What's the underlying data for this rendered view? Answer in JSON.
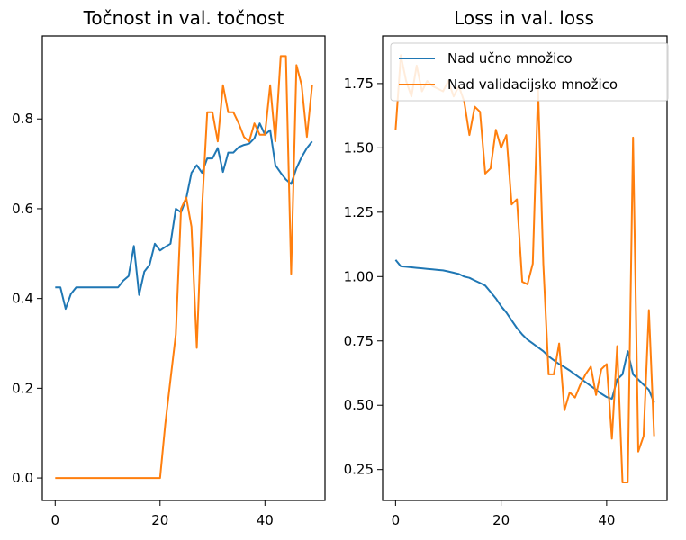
{
  "chart_data": [
    {
      "type": "line",
      "title": "Točnost in val. točnost",
      "xlabel": "",
      "ylabel": "",
      "xlim": [
        -2.45,
        51.45
      ],
      "ylim": [
        -0.05,
        0.985
      ],
      "xticks": [
        0,
        20,
        40
      ],
      "yticks": [
        0.0,
        0.2,
        0.4,
        0.6,
        0.8
      ],
      "ytick_labels": [
        "0.0",
        "0.2",
        "0.4",
        "0.6",
        "0.8"
      ],
      "grid": false,
      "x": [
        0,
        1,
        2,
        3,
        4,
        5,
        6,
        7,
        8,
        9,
        10,
        11,
        12,
        13,
        14,
        15,
        16,
        17,
        18,
        19,
        20,
        21,
        22,
        23,
        24,
        25,
        26,
        27,
        28,
        29,
        30,
        31,
        32,
        33,
        34,
        35,
        36,
        37,
        38,
        39,
        40,
        41,
        42,
        43,
        44,
        45,
        46,
        47,
        48,
        49
      ],
      "series": [
        {
          "color": "#1f77b4",
          "values": [
            0.425,
            0.425,
            0.377,
            0.41,
            0.425,
            0.425,
            0.425,
            0.425,
            0.425,
            0.425,
            0.425,
            0.425,
            0.425,
            0.44,
            0.45,
            0.517,
            0.408,
            0.46,
            0.475,
            0.522,
            0.507,
            0.515,
            0.522,
            0.6,
            0.592,
            0.623,
            0.68,
            0.697,
            0.68,
            0.712,
            0.712,
            0.735,
            0.682,
            0.725,
            0.725,
            0.737,
            0.742,
            0.745,
            0.757,
            0.79,
            0.765,
            0.775,
            0.697,
            0.68,
            0.665,
            0.655,
            0.69,
            0.715,
            0.735,
            0.75
          ]
        },
        {
          "color": "#ff7f0e",
          "values": [
            0,
            0,
            0,
            0,
            0,
            0,
            0,
            0,
            0,
            0,
            0,
            0,
            0,
            0,
            0,
            0,
            0,
            0,
            0,
            0,
            0,
            0.12,
            0.22,
            0.32,
            0.6,
            0.625,
            0.56,
            0.29,
            0.6,
            0.815,
            0.815,
            0.75,
            0.875,
            0.815,
            0.815,
            0.79,
            0.76,
            0.75,
            0.79,
            0.765,
            0.765,
            0.875,
            0.75,
            0.94,
            0.94,
            0.455,
            0.92,
            0.875,
            0.76,
            0.875
          ]
        }
      ]
    },
    {
      "type": "line",
      "title": "Loss in val. loss",
      "xlabel": "",
      "ylabel": "",
      "xlim": [
        -2.45,
        51.45
      ],
      "ylim": [
        0.13,
        1.935
      ],
      "xticks": [
        0,
        20,
        40
      ],
      "yticks": [
        0.25,
        0.5,
        0.75,
        1.0,
        1.25,
        1.5,
        1.75
      ],
      "ytick_labels": [
        "0.25",
        "0.50",
        "0.75",
        "1.00",
        "1.25",
        "1.50",
        "1.75"
      ],
      "grid": false,
      "legend_position": "top-right",
      "x": [
        0,
        1,
        2,
        3,
        4,
        5,
        6,
        7,
        8,
        9,
        10,
        11,
        12,
        13,
        14,
        15,
        16,
        17,
        18,
        19,
        20,
        21,
        22,
        23,
        24,
        25,
        26,
        27,
        28,
        29,
        30,
        31,
        32,
        33,
        34,
        35,
        36,
        37,
        38,
        39,
        40,
        41,
        42,
        43,
        44,
        45,
        46,
        47,
        48,
        49
      ],
      "series": [
        {
          "name": "Nad učno množico",
          "color": "#1f77b4",
          "values": [
            1.065,
            1.04,
            1.038,
            1.036,
            1.034,
            1.032,
            1.03,
            1.028,
            1.026,
            1.024,
            1.02,
            1.015,
            1.01,
            1.0,
            0.995,
            0.985,
            0.975,
            0.965,
            0.94,
            0.915,
            0.885,
            0.86,
            0.83,
            0.8,
            0.775,
            0.755,
            0.74,
            0.725,
            0.71,
            0.69,
            0.675,
            0.66,
            0.648,
            0.635,
            0.62,
            0.605,
            0.59,
            0.575,
            0.56,
            0.545,
            0.532,
            0.525,
            0.6,
            0.62,
            0.71,
            0.62,
            0.6,
            0.58,
            0.56,
            0.51
          ]
        },
        {
          "name": "Nad validacijsko množico",
          "color": "#ff7f0e",
          "values": [
            1.57,
            1.86,
            1.76,
            1.7,
            1.82,
            1.72,
            1.76,
            1.74,
            1.73,
            1.72,
            1.76,
            1.7,
            1.74,
            1.68,
            1.55,
            1.66,
            1.64,
            1.4,
            1.42,
            1.57,
            1.5,
            1.55,
            1.28,
            1.3,
            0.98,
            0.97,
            1.05,
            1.73,
            1.05,
            0.62,
            0.62,
            0.74,
            0.48,
            0.55,
            0.53,
            0.58,
            0.62,
            0.65,
            0.54,
            0.64,
            0.66,
            0.37,
            0.73,
            0.2,
            0.2,
            1.54,
            0.32,
            0.38,
            0.87,
            0.38
          ]
        }
      ]
    }
  ]
}
